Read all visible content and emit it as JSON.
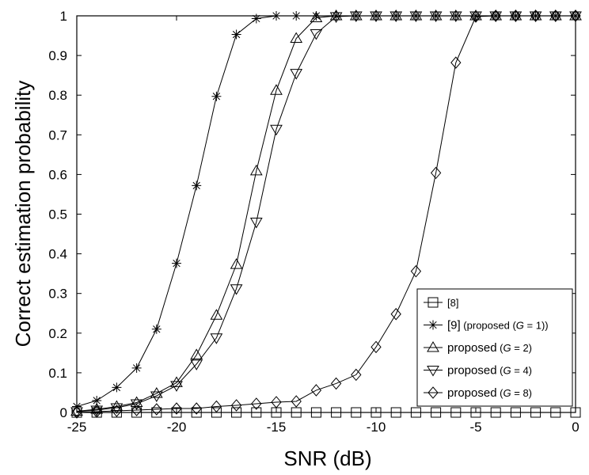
{
  "chart_data": {
    "type": "line",
    "xlabel": "SNR (dB)",
    "ylabel": "Correct estimation probability",
    "xlim": [
      -25,
      0
    ],
    "ylim": [
      0,
      1
    ],
    "xticks": [
      -25,
      -20,
      -15,
      -10,
      -5,
      0
    ],
    "yticks": [
      0,
      0.1,
      0.2,
      0.3,
      0.4,
      0.5,
      0.6,
      0.7,
      0.8,
      0.9,
      1
    ],
    "xtick_labels": [
      "-25",
      "-20",
      "-15",
      "-10",
      "-5",
      "0"
    ],
    "ytick_labels": [
      "0",
      "0.1",
      "0.2",
      "0.3",
      "0.4",
      "0.5",
      "0.6",
      "0.7",
      "0.8",
      "0.9",
      "1"
    ],
    "grid": false,
    "legend_position": "bottom-right",
    "x": [
      -25,
      -24,
      -23,
      -22,
      -21,
      -20,
      -19,
      -18,
      -17,
      -16,
      -15,
      -14,
      -13,
      -12,
      -11,
      -10,
      -9,
      -8,
      -7,
      -6,
      -5,
      -4,
      -3,
      -2,
      -1,
      0
    ],
    "series": [
      {
        "name": "[8]",
        "marker": "square",
        "values": [
          0,
          0,
          0,
          0,
          0,
          0,
          0,
          0,
          0,
          0,
          0,
          0,
          0,
          0,
          0,
          0,
          0,
          0,
          0,
          0,
          0,
          0,
          0,
          0,
          0,
          0
        ]
      },
      {
        "name": "[9] (proposed (G = 1))",
        "name_main": "[9]",
        "name_rest": " (proposed (",
        "name_var": "G",
        "name_eq": " = 1))",
        "marker": "star",
        "values": [
          0.015,
          0.03,
          0.063,
          0.112,
          0.21,
          0.376,
          0.572,
          0.797,
          0.953,
          0.993,
          1,
          1,
          1,
          1,
          1,
          1,
          1,
          1,
          1,
          1,
          1,
          1,
          1,
          1,
          1,
          1
        ]
      },
      {
        "name": "proposed (G = 2)",
        "name_main": "proposed",
        "name_rest": " (",
        "name_var": "G",
        "name_eq": " = 2)",
        "marker": "triangle-up",
        "values": [
          0.003,
          0.008,
          0.015,
          0.025,
          0.048,
          0.075,
          0.145,
          0.245,
          0.373,
          0.609,
          0.812,
          0.943,
          0.995,
          1,
          1,
          1,
          1,
          1,
          1,
          1,
          1,
          1,
          1,
          1,
          1,
          1
        ]
      },
      {
        "name": "proposed (G = 4)",
        "name_main": "proposed",
        "name_rest": " (",
        "name_var": "G",
        "name_eq": " = 4)",
        "marker": "triangle-down",
        "values": [
          0.002,
          0.006,
          0.012,
          0.022,
          0.042,
          0.068,
          0.122,
          0.188,
          0.312,
          0.48,
          0.714,
          0.855,
          0.955,
          0.998,
          1,
          1,
          1,
          1,
          1,
          1,
          1,
          1,
          1,
          1,
          1,
          1
        ]
      },
      {
        "name": "proposed (G = 8)",
        "name_main": "proposed",
        "name_rest": " (",
        "name_var": "G",
        "name_eq": " = 8)",
        "marker": "diamond",
        "values": [
          0.0,
          0.002,
          0.004,
          0.006,
          0.008,
          0.01,
          0.01,
          0.015,
          0.018,
          0.022,
          0.026,
          0.028,
          0.056,
          0.073,
          0.095,
          0.165,
          0.248,
          0.356,
          0.604,
          0.882,
          0.998,
          1,
          1,
          1,
          1,
          1
        ]
      }
    ]
  }
}
